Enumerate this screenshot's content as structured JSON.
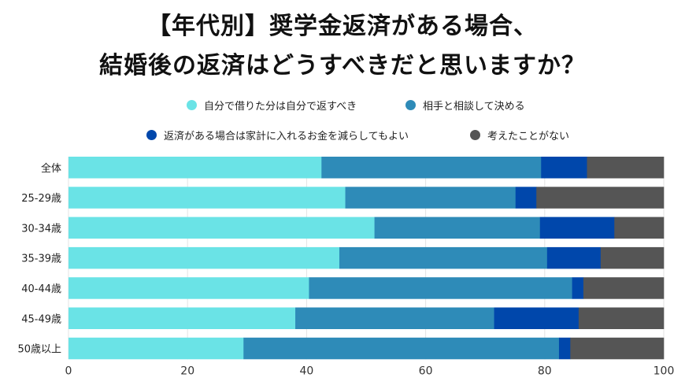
{
  "chart_data": {
    "type": "bar",
    "orientation": "horizontal",
    "stacked": true,
    "title": [
      "【年代別】奨学金返済がある場合、",
      "結婚後の返済はどうすべきだと思いますか？"
    ],
    "categories": [
      "全体",
      "25-29歳",
      "30-34歳",
      "35-39歳",
      "40-44歳",
      "45-49歳",
      "50歳以上"
    ],
    "series": [
      {
        "name": "自分で借りた分は自分で返すべき",
        "color": "#6ae3e6",
        "values": [
          42.5,
          46.5,
          51.4,
          45.5,
          40.4,
          38.1,
          29.4
        ]
      },
      {
        "name": "相手と相談して決める",
        "color": "#2e8bb8",
        "values": [
          36.9,
          28.6,
          27.8,
          34.9,
          44.2,
          33.4,
          53.0
        ]
      },
      {
        "name": "返済がある場合は家計に入れるお金を減らしてもよい",
        "color": "#0047ab",
        "values": [
          7.7,
          3.5,
          12.5,
          9.0,
          1.9,
          14.2,
          1.9
        ]
      },
      {
        "name": "考えたことがない",
        "color": "#555555",
        "values": [
          12.9,
          21.4,
          8.3,
          10.6,
          13.5,
          14.3,
          15.7
        ]
      }
    ],
    "xlim": [
      0,
      100
    ],
    "xticks": [
      "0",
      "20",
      "40",
      "60",
      "80",
      "100"
    ],
    "grid": true,
    "legend_position": "top"
  }
}
